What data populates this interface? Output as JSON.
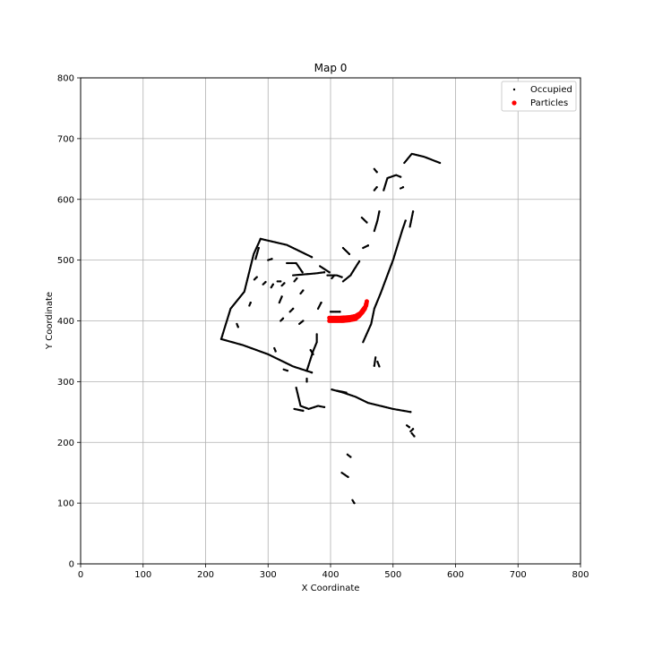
{
  "chart_data": {
    "type": "scatter",
    "title": "Map 0",
    "xlabel": "X Coordinate",
    "ylabel": "Y Coordinate",
    "xlim": [
      0,
      800
    ],
    "ylim": [
      0,
      800
    ],
    "xticks": [
      "0",
      "100",
      "200",
      "300",
      "400",
      "500",
      "600",
      "700",
      "800"
    ],
    "yticks": [
      "0",
      "100",
      "200",
      "300",
      "400",
      "500",
      "600",
      "700",
      "800"
    ],
    "grid": true,
    "legend_position": "top-right",
    "series": [
      {
        "name": "Occupied",
        "color": "#000000",
        "marker": "small-dot",
        "segments": [
          [
            [
              225,
              370
            ],
            [
              240,
              420
            ],
            [
              262,
              448
            ],
            [
              277,
              510
            ],
            [
              288,
              535
            ]
          ],
          [
            [
              288,
              535
            ],
            [
              330,
              525
            ],
            [
              370,
              505
            ]
          ],
          [
            [
              225,
              370
            ],
            [
              260,
              360
            ],
            [
              300,
              345
            ],
            [
              340,
              325
            ],
            [
              370,
              315
            ]
          ],
          [
            [
              330,
              495
            ],
            [
              345,
              495
            ],
            [
              355,
              480
            ]
          ],
          [
            [
              340,
              475
            ],
            [
              375,
              478
            ],
            [
              390,
              480
            ]
          ],
          [
            [
              420,
              520
            ],
            [
              430,
              510
            ]
          ],
          [
            [
              395,
              475
            ],
            [
              410,
              475
            ],
            [
              418,
              472
            ]
          ],
          [
            [
              378,
              378
            ],
            [
              378,
              365
            ],
            [
              372,
              350
            ],
            [
              362,
              318
            ]
          ],
          [
            [
              383,
              490
            ],
            [
              398,
              480
            ]
          ],
          [
            [
              400,
              415
            ],
            [
              415,
              415
            ]
          ],
          [
            [
              345,
              290
            ],
            [
              352,
              260
            ],
            [
              365,
              255
            ],
            [
              380,
              260
            ],
            [
              390,
              258
            ]
          ],
          [
            [
              402,
              287
            ],
            [
              420,
              282
            ],
            [
              440,
              275
            ],
            [
              460,
              265
            ],
            [
              480,
              260
            ],
            [
              500,
              255
            ],
            [
              528,
              250
            ]
          ],
          [
            [
              410,
              285
            ],
            [
              425,
              282
            ]
          ],
          [
            [
              362,
              305
            ],
            [
              362,
              300
            ]
          ],
          [
            [
              342,
              255
            ],
            [
              356,
              252
            ]
          ],
          [
            [
              427,
              180
            ],
            [
              432,
              176
            ]
          ],
          [
            [
              418,
              150
            ],
            [
              428,
              143
            ]
          ],
          [
            [
              435,
              105
            ],
            [
              438,
              100
            ]
          ],
          [
            [
              475,
              333
            ],
            [
              478,
              325
            ]
          ],
          [
            [
              472,
              340
            ],
            [
              470,
              326
            ]
          ],
          [
            [
              452,
              365
            ],
            [
              465,
              395
            ],
            [
              470,
              420
            ],
            [
              480,
              445
            ],
            [
              500,
              500
            ],
            [
              515,
              550
            ],
            [
              520,
              565
            ]
          ],
          [
            [
              527,
              555
            ],
            [
              532,
              580
            ]
          ],
          [
            [
              470,
              650
            ],
            [
              474,
              645
            ]
          ],
          [
            [
              485,
              615
            ],
            [
              491,
              635
            ],
            [
              505,
              640
            ],
            [
              512,
              637
            ]
          ],
          [
            [
              450,
              570
            ],
            [
              458,
              562
            ]
          ],
          [
            [
              452,
              520
            ],
            [
              460,
              524
            ]
          ],
          [
            [
              470,
              548
            ],
            [
              475,
              565
            ],
            [
              478,
              580
            ]
          ],
          [
            [
              420,
              465
            ],
            [
              432,
              475
            ],
            [
              438,
              485
            ],
            [
              446,
              498
            ]
          ],
          [
            [
              518,
              660
            ],
            [
              530,
              675
            ],
            [
              550,
              670
            ],
            [
              575,
              660
            ]
          ],
          [
            [
              530,
              215
            ],
            [
              534,
              210
            ]
          ],
          [
            [
              528,
              218
            ],
            [
              532,
              222
            ]
          ],
          [
            [
              522,
              228
            ],
            [
              526,
              225
            ]
          ],
          [
            [
              280,
              502
            ],
            [
              285,
              520
            ]
          ],
          [
            [
              278,
              468
            ],
            [
              282,
              472
            ]
          ],
          [
            [
              270,
              425
            ],
            [
              272,
              430
            ]
          ],
          [
            [
              305,
              455
            ],
            [
              308,
              460
            ]
          ],
          [
            [
              315,
              465
            ],
            [
              320,
              465
            ]
          ],
          [
            [
              318,
              430
            ],
            [
              322,
              440
            ]
          ],
          [
            [
              320,
              400
            ],
            [
              324,
              404
            ]
          ],
          [
            [
              368,
              352
            ],
            [
              372,
              345
            ]
          ],
          [
            [
              250,
              395
            ],
            [
              252,
              390
            ]
          ],
          [
            [
              380,
              420
            ],
            [
              385,
              430
            ]
          ],
          [
            [
              350,
              395
            ],
            [
              356,
              400
            ]
          ],
          [
            [
              310,
              355
            ],
            [
              312,
              350
            ]
          ],
          [
            [
              325,
              320
            ],
            [
              331,
              318
            ]
          ],
          [
            [
              335,
              415
            ],
            [
              340,
              420
            ]
          ],
          [
            [
              342,
              465
            ],
            [
              346,
              470
            ]
          ],
          [
            [
              352,
              445
            ],
            [
              356,
              450
            ]
          ],
          [
            [
              322,
              458
            ],
            [
              326,
              462
            ]
          ],
          [
            [
              292,
              460
            ],
            [
              296,
              464
            ]
          ],
          [
            [
              300,
              500
            ],
            [
              306,
              502
            ]
          ],
          [
            [
              402,
              470
            ],
            [
              406,
              475
            ]
          ],
          [
            [
              512,
              618
            ],
            [
              516,
              620
            ]
          ],
          [
            [
              470,
              615
            ],
            [
              474,
              620
            ]
          ]
        ]
      },
      {
        "name": "Particles",
        "color": "#ff0000",
        "marker": "filled-circle",
        "segments": [
          [
            [
              398,
              400
            ],
            [
              410,
              400
            ],
            [
              420,
              400
            ],
            [
              430,
              401
            ],
            [
              440,
              403
            ],
            [
              446,
              408
            ],
            [
              451,
              414
            ],
            [
              455,
              420
            ],
            [
              457,
              428
            ]
          ],
          [
            [
              398,
              405
            ],
            [
              415,
              405
            ],
            [
              430,
              406
            ],
            [
              440,
              408
            ],
            [
              448,
              413
            ],
            [
              453,
              420
            ],
            [
              457,
              425
            ],
            [
              458,
              432
            ]
          ]
        ]
      }
    ]
  }
}
